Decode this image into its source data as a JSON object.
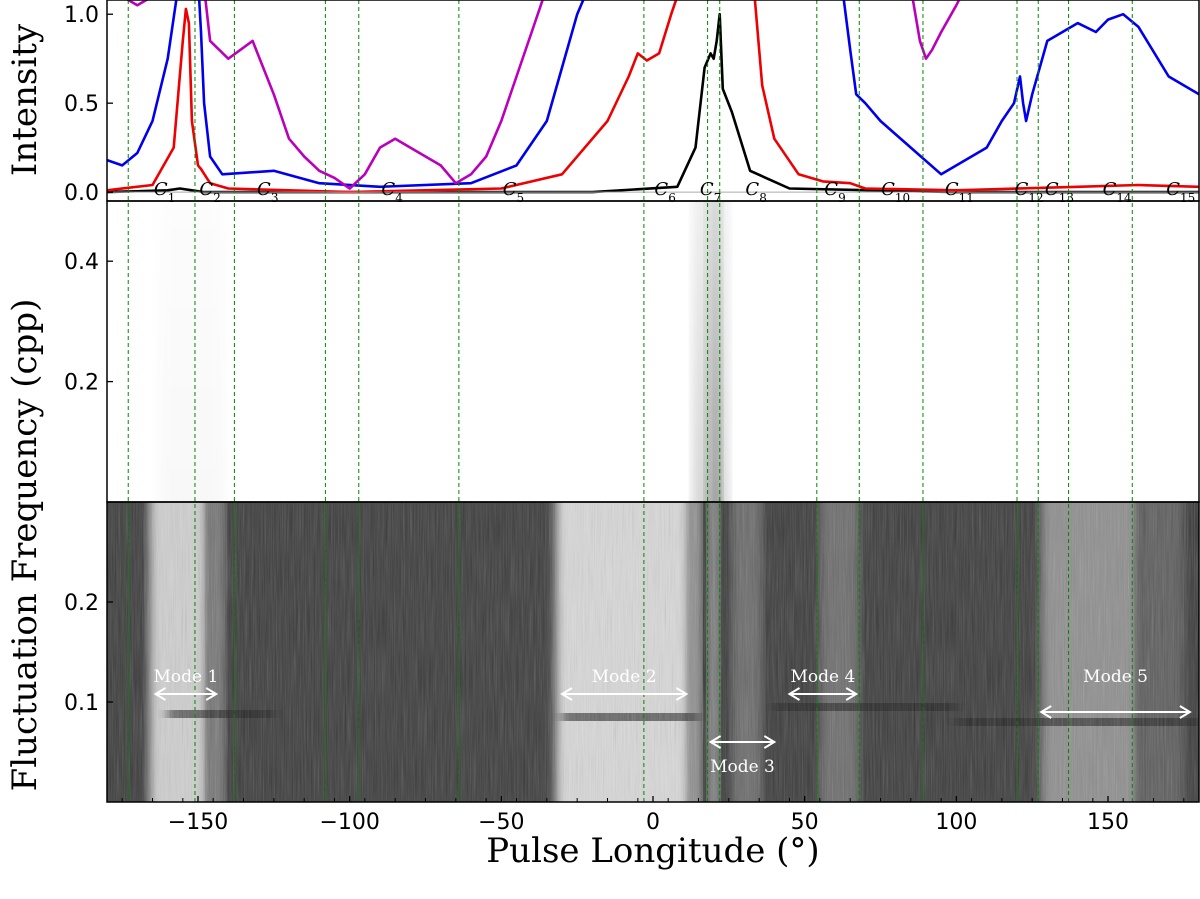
{
  "chart_data": {
    "type": "line",
    "xlabel": "Pulse Longitude (°)",
    "xlim": [
      -180,
      180
    ],
    "x_ticks": [
      -150,
      -100,
      -50,
      0,
      50,
      100,
      150
    ],
    "x_tick_labels": [
      "−150",
      "−100",
      "−50",
      "0",
      "50",
      "100",
      "150"
    ],
    "panels": [
      {
        "name": "intensity",
        "ylabel": "Intensity",
        "ylim": [
          -0.05,
          1.08
        ],
        "y_ticks": [
          0.0,
          0.5,
          1.0
        ],
        "y_tick_labels": [
          "0.0",
          "0.5",
          "1.0"
        ],
        "series": [
          {
            "color": "#000000",
            "x": [
              -180,
              -160,
              -156,
              -152,
              -148,
              -100,
              -20,
              8,
              14,
              17,
              19,
              20,
              21,
              22,
              23,
              26,
              32,
              45,
              100,
              180
            ],
            "y": [
              0.0,
              0.01,
              0.02,
              0.01,
              0.0,
              0.0,
              0.0,
              0.03,
              0.25,
              0.7,
              0.78,
              0.75,
              0.85,
              1.0,
              0.58,
              0.45,
              0.12,
              0.02,
              0.0,
              0.0
            ]
          },
          {
            "color": "#ee0000",
            "x": [
              -180,
              -165,
              -158,
              -155,
              -154,
              -153,
              -152,
              -150,
              -149,
              -146,
              -140,
              -100,
              -50,
              -30,
              -15,
              -8,
              -5,
              -2,
              2,
              6,
              12,
              25,
              33,
              36,
              40,
              48,
              56,
              65,
              70,
              100,
              140,
              160,
              180
            ],
            "y": [
              0.01,
              0.04,
              0.25,
              0.85,
              1.03,
              0.95,
              0.4,
              0.15,
              0.13,
              0.05,
              0.02,
              0.0,
              0.02,
              0.1,
              0.4,
              0.65,
              0.78,
              0.74,
              0.78,
              1.0,
              1.3,
              1.3,
              1.2,
              0.6,
              0.3,
              0.1,
              0.06,
              0.05,
              0.02,
              0.01,
              0.03,
              0.04,
              0.03
            ]
          },
          {
            "color": "#0000ee",
            "x": [
              -180,
              -175,
              -170,
              -165,
              -160,
              -157,
              -156,
              -150,
              -149,
              -148,
              -146,
              -142,
              -125,
              -110,
              -90,
              -60,
              -45,
              -35,
              -30,
              -25,
              -20,
              62,
              65,
              67,
              70,
              75,
              85,
              95,
              110,
              115,
              119,
              121,
              122,
              123,
              125,
              130,
              140,
              146,
              150,
              155,
              160,
              170,
              180
            ],
            "y": [
              0.18,
              0.15,
              0.22,
              0.4,
              0.75,
              1.1,
              1.2,
              1.2,
              0.9,
              0.5,
              0.2,
              0.1,
              0.12,
              0.05,
              0.03,
              0.05,
              0.15,
              0.4,
              0.7,
              1.0,
              1.2,
              1.2,
              0.8,
              0.55,
              0.5,
              0.4,
              0.25,
              0.1,
              0.25,
              0.4,
              0.5,
              0.65,
              0.5,
              0.4,
              0.55,
              0.85,
              0.95,
              0.9,
              0.97,
              1.0,
              0.93,
              0.65,
              0.55
            ]
          },
          {
            "color": "#bb00bb",
            "x": [
              -180,
              -175,
              -170,
              -165,
              -162,
              -148,
              -146,
              -140,
              -132,
              -125,
              -120,
              -115,
              -110,
              -105,
              -100,
              -95,
              -90,
              -85,
              -80,
              -75,
              -70,
              -65,
              -60,
              -55,
              -50,
              -45,
              -40,
              -37,
              -35,
              85,
              88,
              90,
              92,
              95,
              100,
              103
            ],
            "y": [
              1.2,
              1.1,
              1.05,
              1.1,
              1.15,
              1.15,
              0.85,
              0.75,
              0.85,
              0.55,
              0.3,
              0.2,
              0.12,
              0.08,
              0.02,
              0.1,
              0.25,
              0.3,
              0.25,
              0.2,
              0.15,
              0.05,
              0.1,
              0.2,
              0.4,
              0.65,
              0.9,
              1.05,
              1.15,
              1.15,
              0.85,
              0.75,
              0.8,
              0.9,
              1.05,
              1.15
            ]
          }
        ],
        "component_labels": [
          {
            "x": -161,
            "base": "C",
            "sub": "1"
          },
          {
            "x": -146,
            "base": "C",
            "sub": "2"
          },
          {
            "x": -127,
            "base": "C",
            "sub": "3"
          },
          {
            "x": -86,
            "base": "C",
            "sub": "4"
          },
          {
            "x": -46,
            "base": "C",
            "sub": "5"
          },
          {
            "x": 4,
            "base": "C",
            "sub": "6"
          },
          {
            "x": 19,
            "base": "C",
            "sub": "7"
          },
          {
            "x": 34,
            "base": "C",
            "sub": "8"
          },
          {
            "x": 60,
            "base": "C",
            "sub": "9"
          },
          {
            "x": 80,
            "base": "C",
            "sub": "10"
          },
          {
            "x": 101,
            "base": "C",
            "sub": "11"
          },
          {
            "x": 124,
            "base": "C",
            "sub": "12"
          },
          {
            "x": 134,
            "base": "C",
            "sub": "13"
          },
          {
            "x": 153,
            "base": "C",
            "sub": "14"
          },
          {
            "x": 174,
            "base": "C",
            "sub": "15"
          }
        ]
      },
      {
        "name": "lrfs-high",
        "ylabel": "Fluctuation Frequency (cpp)",
        "ylim": [
          0.0,
          0.5
        ],
        "y_ticks": [
          0.2,
          0.4
        ],
        "y_tick_labels": [
          "0.2",
          "0.4"
        ],
        "colormap": "gray_r"
      },
      {
        "name": "lrfs-low",
        "ylim": [
          0.0,
          0.3
        ],
        "y_ticks": [
          0.1,
          0.2
        ],
        "y_tick_labels": [
          "0.1",
          "0.2"
        ],
        "colormap": "gray",
        "modes": [
          {
            "label": "Mode 1",
            "x_start": -164,
            "x_end": -144,
            "y": 0.108,
            "label_y": 0.126
          },
          {
            "label": "Mode 2",
            "x_start": -30,
            "x_end": 11,
            "y": 0.108,
            "label_y": 0.126
          },
          {
            "label": "Mode 3",
            "x_start": 19,
            "x_end": 40,
            "y": 0.06,
            "label_y": 0.036
          },
          {
            "label": "Mode 4",
            "x_start": 45,
            "x_end": 67,
            "y": 0.108,
            "label_y": 0.126
          },
          {
            "label": "Mode 5",
            "x_start": 128,
            "x_end": 177,
            "y": 0.09,
            "label_y": 0.126
          }
        ]
      }
    ],
    "component_boundaries": [
      -173,
      -151,
      -138,
      -108,
      -97,
      -64,
      -3,
      18,
      22,
      54,
      68,
      89,
      120,
      127,
      137,
      158
    ],
    "boundary_color": "#008800",
    "grid": false
  }
}
